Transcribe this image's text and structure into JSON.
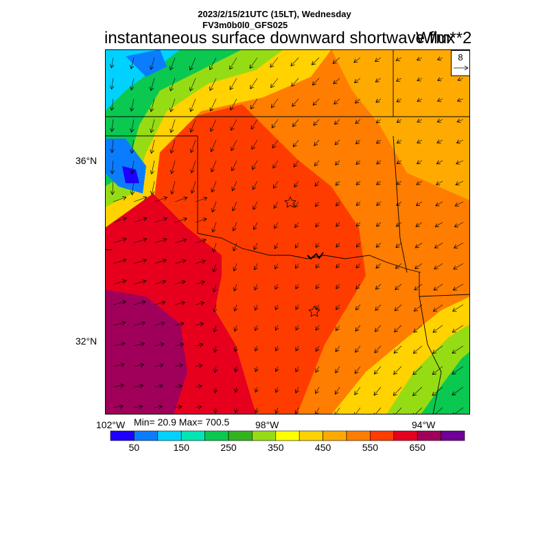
{
  "header": {
    "line1": "2023/2/15/21UTC (15LT), Wednesday",
    "line2": "FV3m0b0l0_GFS025",
    "title": "instantaneous surface downward shortwave flux",
    "units": "W/m**2"
  },
  "axes": {
    "lat_labels": [
      "36°N",
      "32°N"
    ],
    "lon_labels": [
      "102°W",
      "98°W",
      "94°W"
    ]
  },
  "stats": {
    "text": "Min= 20.9 Max= 700.5"
  },
  "reference_vector": {
    "value": "8"
  },
  "colorbar": {
    "labels": [
      "50",
      "150",
      "250",
      "350",
      "450",
      "550",
      "650"
    ],
    "colors": [
      "#1e00ff",
      "#0a7dff",
      "#00d2ff",
      "#00e6b4",
      "#0ac850",
      "#32b41e",
      "#96dc14",
      "#ffff00",
      "#ffd200",
      "#ffaa00",
      "#ff7d00",
      "#ff3c00",
      "#e6001e",
      "#a0005a",
      "#6e0096"
    ]
  },
  "markers": [
    "star-marker-north",
    "star-marker-south"
  ],
  "icons": [
    "wind-arrow-icon",
    "star-icon"
  ]
}
